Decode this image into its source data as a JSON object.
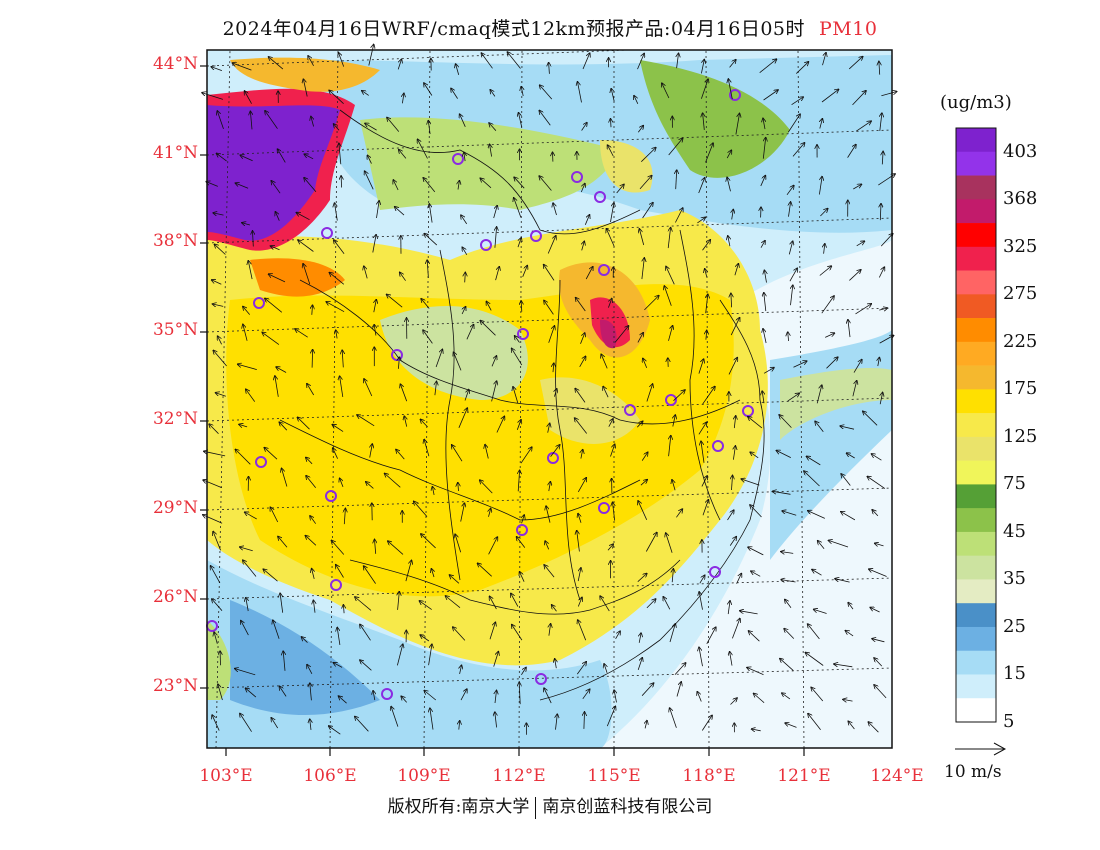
{
  "title": {
    "main": "2024年04月16日WRF/cmaq模式12km预报产品:04月16日05时",
    "pollutant": "PM10"
  },
  "map": {
    "lat_labels": [
      "44°N",
      "41°N",
      "38°N",
      "35°N",
      "32°N",
      "29°N",
      "26°N",
      "23°N"
    ],
    "lon_labels": [
      "103°E",
      "106°E",
      "109°E",
      "112°E",
      "115°E",
      "118°E",
      "121°E",
      "124°E"
    ]
  },
  "colorbar": {
    "unit": "(ug/m3)",
    "labels": [
      "403",
      "368",
      "325",
      "275",
      "225",
      "175",
      "125",
      "75",
      "45",
      "35",
      "25",
      "15",
      "5"
    ],
    "colors": [
      "#7e22ce",
      "#9333ea",
      "#a8325e",
      "#c21b6b",
      "#ff0000",
      "#f0214d",
      "#ff6464",
      "#f05a23",
      "#ff8c00",
      "#ffaa22",
      "#f5b82e",
      "#ffe000",
      "#f7e94a",
      "#eae36a",
      "#f0f55a",
      "#55a036",
      "#8cc24a",
      "#bde077",
      "#cce3a0",
      "#e4ecc3",
      "#4a90c8",
      "#6cb0e3",
      "#a6dcf5",
      "#cfeefb",
      "#ffffff"
    ]
  },
  "wind": {
    "reference_label": "10 m/s"
  },
  "copyright": {
    "left": "版权所有:南京大学",
    "right": "南京创蓝科技有限公司"
  }
}
